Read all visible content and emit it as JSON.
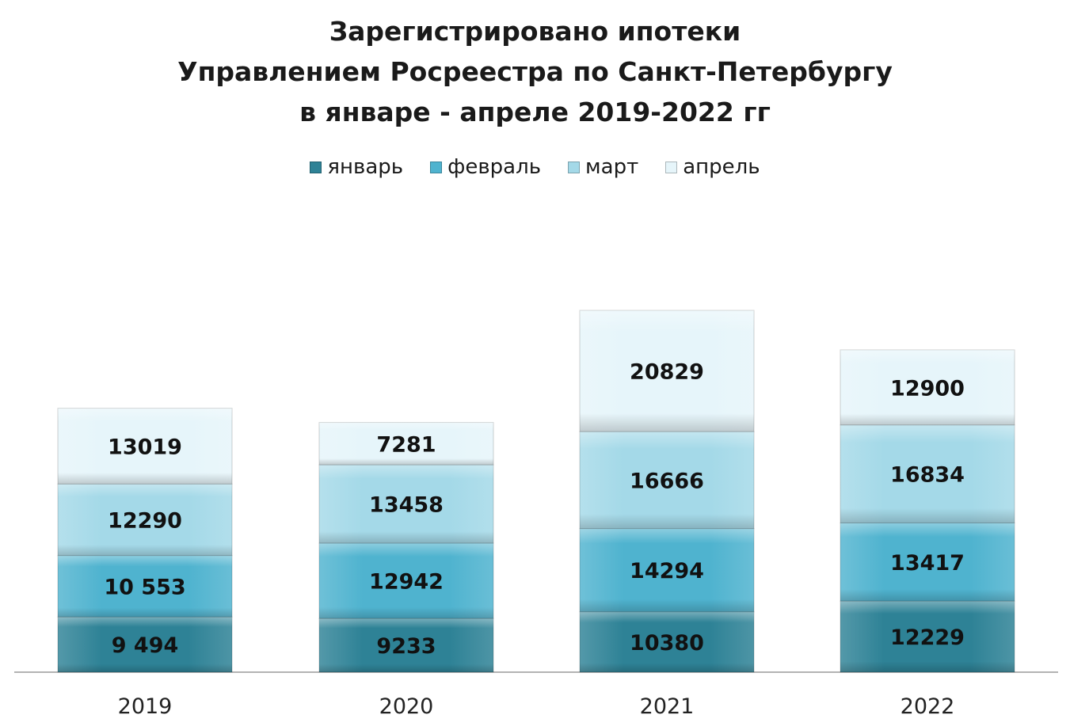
{
  "title_lines": [
    "Зарегистрировано ипотеки",
    "Управлением Росреестра по Санкт-Петербургу",
    "в январе - апреле 2019-2022 гг"
  ],
  "chart_data": {
    "type": "bar",
    "stacked": true,
    "categories": [
      "2019",
      "2020",
      "2021",
      "2022"
    ],
    "series": [
      {
        "name": "январь",
        "color": "#2e8296",
        "values": [
          9494,
          9233,
          10380,
          12229
        ],
        "labels": [
          "9 494",
          "9233",
          "10380",
          "12229"
        ]
      },
      {
        "name": "февраль",
        "color": "#4fb3cf",
        "values": [
          10553,
          12942,
          14294,
          13417
        ],
        "labels": [
          "10 553",
          "12942",
          "14294",
          "13417"
        ]
      },
      {
        "name": "март",
        "color": "#a4d9e8",
        "values": [
          12290,
          13458,
          16666,
          16834
        ],
        "labels": [
          "12290",
          "13458",
          "16666",
          "16834"
        ]
      },
      {
        "name": "апрель",
        "color": "#e6f5fa",
        "values": [
          13019,
          7281,
          20829,
          12900
        ],
        "labels": [
          "13019",
          "7281",
          "20829",
          "12900"
        ]
      }
    ],
    "legend_position": "top",
    "grid": false
  }
}
